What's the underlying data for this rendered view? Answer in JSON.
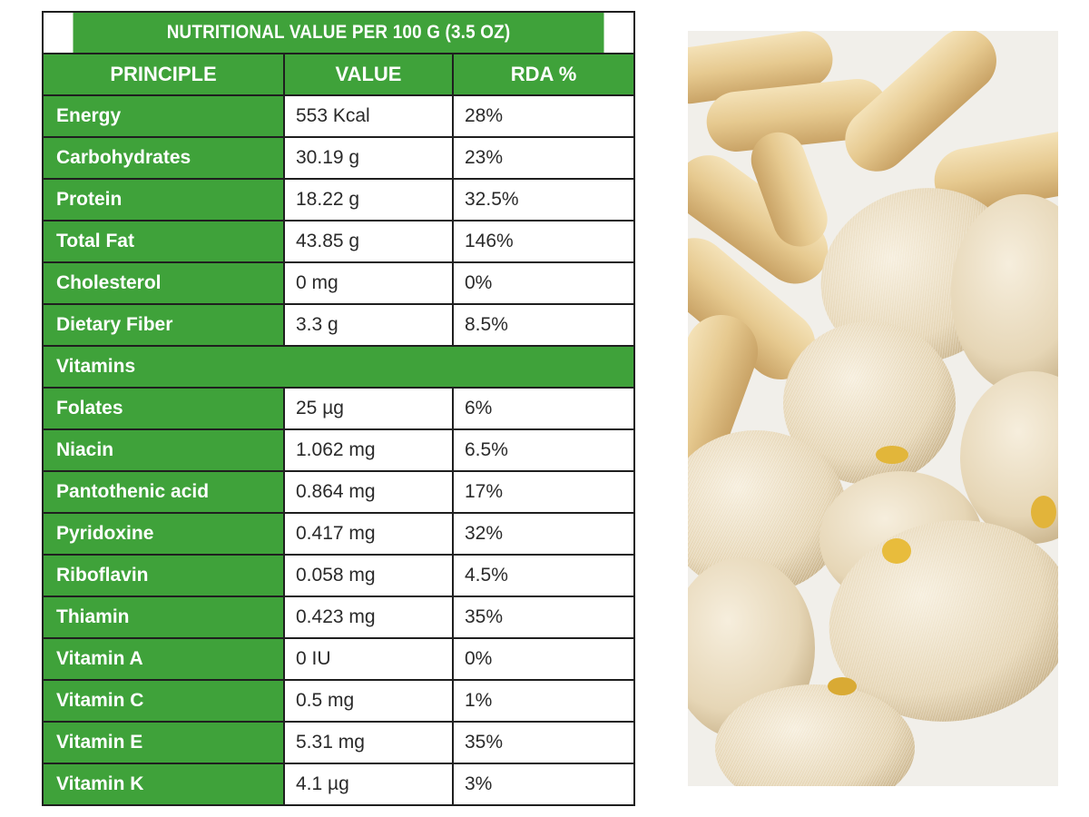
{
  "table": {
    "title": "NUTRITIONAL VALUE PER 100 G (3.5 OZ)",
    "headers": {
      "principle": "PRINCIPLE",
      "value": "VALUE",
      "rda": "RDA %"
    },
    "rows": [
      {
        "name": "Energy",
        "value": "553 Kcal",
        "rda": "28%"
      },
      {
        "name": "Carbohydrates",
        "value": "30.19 g",
        "rda": "23%"
      },
      {
        "name": "Protein",
        "value": "18.22 g",
        "rda": "32.5%"
      },
      {
        "name": "Total Fat",
        "value": "43.85 g",
        "rda": "146%"
      },
      {
        "name": "Cholesterol",
        "value": "0 mg",
        "rda": "0%"
      },
      {
        "name": "Dietary Fiber",
        "value": "3.3 g",
        "rda": "8.5%"
      }
    ],
    "section_vitamins": "Vitamins",
    "vitamins": [
      {
        "name": "Folates",
        "value": "25 µg",
        "rda": "6%"
      },
      {
        "name": "Niacin",
        "value": "1.062 mg",
        "rda": "6.5%"
      },
      {
        "name": "Pantothenic acid",
        "value": "0.864 mg",
        "rda": "17%"
      },
      {
        "name": "Pyridoxine",
        "value": "0.417 mg",
        "rda": "32%"
      },
      {
        "name": "Riboflavin",
        "value": "0.058 mg",
        "rda": "4.5%"
      },
      {
        "name": "Thiamin",
        "value": "0.423 mg",
        "rda": "35%"
      },
      {
        "name": "Vitamin A",
        "value": "0 IU",
        "rda": "0%"
      },
      {
        "name": "Vitamin C",
        "value": "0.5 mg",
        "rda": "1%"
      },
      {
        "name": "Vitamin E",
        "value": "5.31 mg",
        "rda": "35%"
      },
      {
        "name": "Vitamin K",
        "value": "4.1 µg",
        "rda": "3%"
      }
    ]
  },
  "colors": {
    "header_green": "#3fa23a",
    "capsule": "#e9cf9a",
    "mushroom": "#eadcc1"
  }
}
